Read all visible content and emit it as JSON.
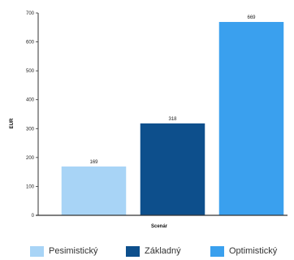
{
  "chart_data": {
    "type": "bar",
    "title": "",
    "xlabel": "Scenár",
    "ylabel": "EUR",
    "ylim": [
      0,
      700
    ],
    "yticks": [
      0,
      100,
      200,
      300,
      400,
      500,
      600,
      700
    ],
    "grid": false,
    "legend": "bottom",
    "categories": [
      "Pesimistický",
      "Základný",
      "Optimistický"
    ],
    "values": [
      169,
      318,
      669
    ],
    "data_labels": [
      "169",
      "318",
      "669"
    ],
    "colors": [
      "#a8d4f6",
      "#0d4f8c",
      "#3aa0ee"
    ]
  },
  "legend": {
    "items": [
      {
        "label": "Pesimistický",
        "color": "#a8d4f6"
      },
      {
        "label": "Základný",
        "color": "#0d4f8c"
      },
      {
        "label": "Optimistický",
        "color": "#3aa0ee"
      }
    ]
  }
}
